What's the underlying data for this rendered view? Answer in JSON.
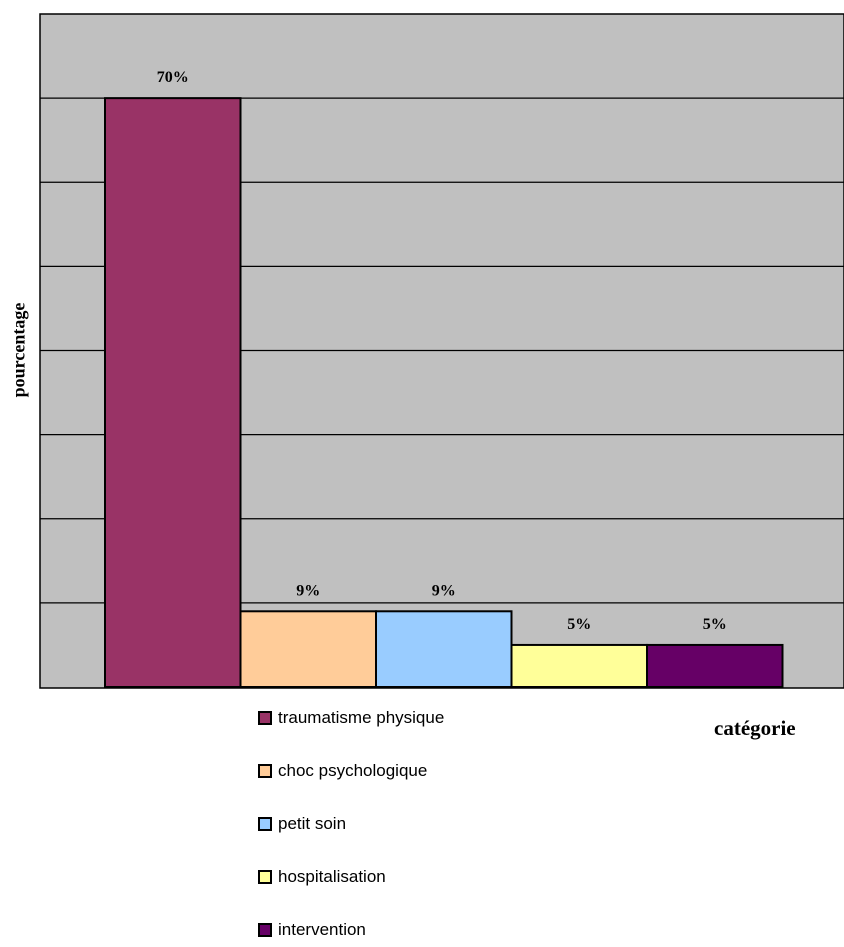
{
  "chart_data": {
    "type": "bar",
    "categories": [
      "traumatisme physique",
      "choc psychologique",
      "petit soin",
      "hospitalisation",
      "intervention"
    ],
    "values": [
      70,
      9,
      9,
      5,
      5
    ],
    "value_labels": [
      "70%",
      "9%",
      "9%",
      "5%",
      "5%"
    ],
    "colors": [
      "#993366",
      "#ffcc99",
      "#99ccff",
      "#ffff99",
      "#660066"
    ],
    "xlabel": "catégorie",
    "ylabel": "pourcentage",
    "ylim": [
      0,
      80
    ],
    "grid": true,
    "plot_background": "#c0c0c0",
    "legend": "bottom"
  }
}
